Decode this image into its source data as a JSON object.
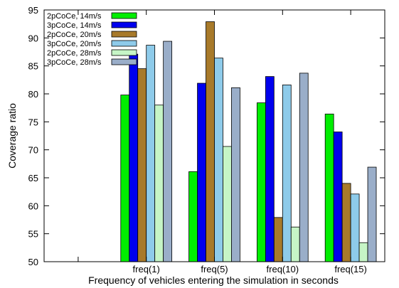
{
  "chart_data": {
    "type": "bar",
    "xlabel": "Frequency of vehicles entering the simulation in seconds",
    "ylabel": "Coverage ratio",
    "ylim": [
      50,
      95
    ],
    "yticks": [
      50,
      55,
      60,
      65,
      70,
      75,
      80,
      85,
      90,
      95
    ],
    "categories": [
      "",
      "freq(1)",
      "freq(5)",
      "freq(10)",
      "freq(15)"
    ],
    "grid": false,
    "legend_position": "top-left",
    "series": [
      {
        "name": "2pCoCe, 14m/s",
        "color": "#00ee00",
        "values": [
          null,
          79.8,
          66.1,
          78.4,
          76.4
        ]
      },
      {
        "name": "3pCoCe, 14m/s",
        "color": "#0000ee",
        "values": [
          null,
          87.1,
          81.9,
          83.1,
          73.2
        ]
      },
      {
        "name": "2pCoCe, 20m/s",
        "color": "#a87a2a",
        "values": [
          null,
          84.5,
          92.9,
          57.9,
          64.0
        ]
      },
      {
        "name": "3pCoCe, 20m/s",
        "color": "#8ecbea",
        "values": [
          null,
          88.7,
          86.4,
          81.6,
          62.1
        ]
      },
      {
        "name": "2pCoCe, 28m/s",
        "color": "#c6f5c6",
        "values": [
          null,
          78.0,
          70.6,
          56.2,
          53.4
        ]
      },
      {
        "name": "3pCoCe, 28m/s",
        "color": "#9aaec9",
        "values": [
          null,
          89.4,
          81.1,
          83.7,
          66.9
        ]
      }
    ]
  }
}
